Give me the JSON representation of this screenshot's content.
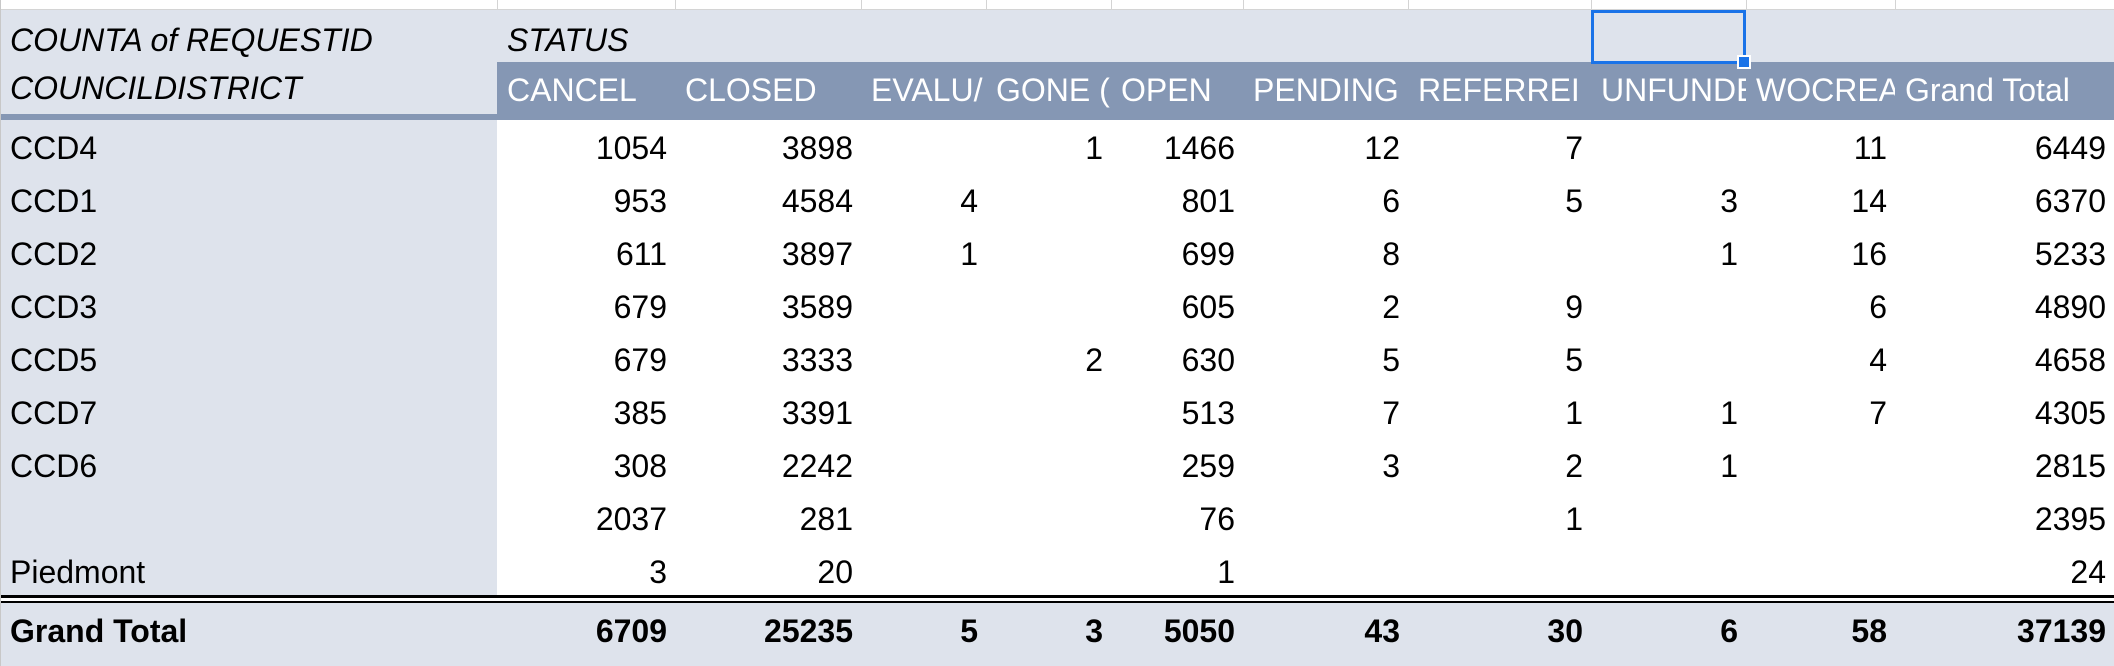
{
  "pivot": {
    "value_label": "COUNTA of REQUESTID",
    "column_field_label": "STATUS",
    "row_field_label": "COUNCILDISTRICT",
    "columns": [
      "CANCEL",
      "CLOSED",
      "EVALU/",
      "GONE (",
      "OPEN",
      "PENDING",
      "REFERREI",
      "UNFUNDE",
      "WOCREA",
      "Grand Total"
    ],
    "rows": [
      {
        "label": "CCD4",
        "values": [
          "1054",
          "3898",
          "",
          "1",
          "1466",
          "12",
          "7",
          "",
          "11",
          "6449"
        ]
      },
      {
        "label": "CCD1",
        "values": [
          "953",
          "4584",
          "4",
          "",
          "801",
          "6",
          "5",
          "3",
          "14",
          "6370"
        ]
      },
      {
        "label": "CCD2",
        "values": [
          "611",
          "3897",
          "1",
          "",
          "699",
          "8",
          "",
          "1",
          "16",
          "5233"
        ]
      },
      {
        "label": "CCD3",
        "values": [
          "679",
          "3589",
          "",
          "",
          "605",
          "2",
          "9",
          "",
          "6",
          "4890"
        ]
      },
      {
        "label": "CCD5",
        "values": [
          "679",
          "3333",
          "",
          "2",
          "630",
          "5",
          "5",
          "",
          "4",
          "4658"
        ]
      },
      {
        "label": "CCD7",
        "values": [
          "385",
          "3391",
          "",
          "",
          "513",
          "7",
          "1",
          "1",
          "7",
          "4305"
        ]
      },
      {
        "label": "CCD6",
        "values": [
          "308",
          "2242",
          "",
          "",
          "259",
          "3",
          "2",
          "1",
          "",
          "2815"
        ]
      },
      {
        "label": "",
        "values": [
          "2037",
          "281",
          "",
          "",
          "76",
          "",
          "1",
          "",
          "",
          "2395"
        ]
      },
      {
        "label": "Piedmont",
        "values": [
          "3",
          "20",
          "",
          "",
          "1",
          "",
          "",
          "",
          "",
          "24"
        ]
      }
    ],
    "grand_total": {
      "label": "Grand Total",
      "values": [
        "6709",
        "25235",
        "5",
        "3",
        "5050",
        "43",
        "30",
        "6",
        "58",
        "37139"
      ]
    }
  },
  "colors": {
    "header_band": "#8597b4",
    "pivot_light": "#dee3ec",
    "selection": "#1a73e8"
  }
}
